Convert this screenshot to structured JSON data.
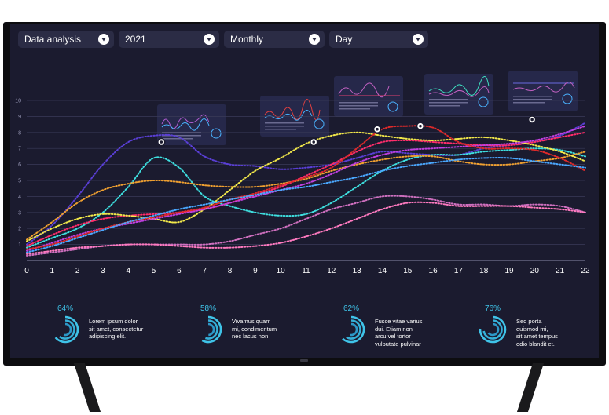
{
  "toolbar": {
    "title_select": "Data analysis",
    "year_select": "2021",
    "period_select": "Monthly",
    "unit_select": "Day"
  },
  "kpis": [
    {
      "percent_label": "64%",
      "percent": 64,
      "text": [
        "Lorem ipsum dolor",
        "sit amet, consectetur",
        "adipiscing elit."
      ]
    },
    {
      "percent_label": "58%",
      "percent": 58,
      "text": [
        "Vivamus quam",
        "mi, condimentum",
        "nec lacus non"
      ]
    },
    {
      "percent_label": "62%",
      "percent": 62,
      "text": [
        "Fusce vitae varius",
        "dui.  Etiam non",
        "arcu vel tortor",
        "vulputate pulvinar"
      ]
    },
    {
      "percent_label": "76%",
      "percent": 76,
      "text": [
        "Sed porta",
        "euismod mi,",
        "sit amet tempus",
        "odio blandit et."
      ]
    }
  ],
  "colors": {
    "screen_bg": "#1b1b2f",
    "accent_cyan": "#3fc3e8",
    "series": [
      "#5a3fd6",
      "#3ee0e0",
      "#f0a030",
      "#ff2d6b",
      "#f2e84a",
      "#c040e0",
      "#e02a2a",
      "#d070c0",
      "#4aa8ff",
      "#ff7ac0"
    ]
  },
  "chart_data": {
    "type": "line",
    "x": [
      0,
      1,
      2,
      3,
      4,
      5,
      6,
      7,
      8,
      9,
      10,
      11,
      12,
      13,
      14,
      15,
      16,
      17,
      18,
      19,
      20,
      21,
      22
    ],
    "ylim": [
      0,
      10
    ],
    "y_ticks": [
      1,
      2,
      3,
      4,
      5,
      6,
      7,
      8,
      9,
      10
    ],
    "grid": true,
    "line_style": "dotted",
    "series": [
      {
        "values": [
          1.0,
          2.2,
          4.0,
          6.0,
          7.4,
          7.8,
          7.7,
          6.5,
          6.0,
          5.9,
          5.7,
          5.8,
          6.0,
          6.4,
          6.8,
          6.7,
          6.6,
          6.6,
          7.0,
          7.2,
          7.4,
          7.8,
          8.6
        ]
      },
      {
        "values": [
          0.8,
          1.4,
          2.0,
          3.0,
          4.6,
          6.4,
          5.8,
          4.0,
          3.4,
          3.0,
          2.8,
          2.9,
          3.6,
          4.6,
          5.6,
          6.3,
          6.6,
          6.6,
          6.8,
          6.9,
          7.0,
          6.9,
          6.5
        ]
      },
      {
        "values": [
          1.3,
          2.4,
          3.6,
          4.4,
          4.8,
          5.0,
          4.9,
          4.7,
          4.6,
          4.6,
          4.8,
          5.1,
          5.6,
          6.0,
          6.3,
          6.5,
          6.5,
          6.2,
          6.0,
          6.0,
          6.2,
          6.4,
          6.8
        ]
      },
      {
        "values": [
          0.9,
          1.6,
          2.2,
          2.6,
          2.8,
          2.9,
          3.0,
          3.2,
          3.6,
          4.1,
          4.6,
          5.3,
          6.0,
          6.8,
          7.4,
          7.5,
          7.4,
          7.3,
          7.2,
          7.2,
          7.4,
          7.7,
          8.0
        ]
      },
      {
        "values": [
          1.2,
          2.0,
          2.6,
          2.9,
          2.8,
          2.6,
          2.4,
          3.2,
          4.4,
          5.6,
          6.4,
          7.3,
          7.8,
          8.0,
          7.8,
          7.6,
          7.5,
          7.6,
          7.7,
          7.5,
          7.2,
          6.8,
          6.2
        ]
      },
      {
        "values": [
          0.6,
          1.1,
          1.6,
          2.0,
          2.3,
          2.6,
          2.9,
          3.2,
          3.6,
          4.0,
          4.4,
          4.8,
          5.4,
          6.1,
          6.6,
          6.9,
          7.0,
          7.1,
          7.2,
          7.3,
          7.5,
          7.9,
          8.4
        ]
      },
      {
        "values": [
          0.7,
          1.0,
          1.5,
          2.0,
          2.4,
          2.7,
          3.0,
          3.3,
          3.8,
          4.2,
          4.7,
          5.2,
          5.8,
          7.0,
          8.2,
          8.4,
          8.3,
          7.4,
          7.0,
          7.0,
          6.9,
          6.4,
          5.6
        ]
      },
      {
        "values": [
          0.3,
          0.5,
          0.7,
          0.9,
          1.0,
          1.0,
          1.0,
          1.0,
          1.2,
          1.6,
          2.0,
          2.6,
          3.2,
          3.6,
          4.0,
          4.0,
          3.8,
          3.5,
          3.5,
          3.4,
          3.5,
          3.4,
          3.0
        ]
      },
      {
        "values": [
          0.5,
          0.9,
          1.4,
          1.9,
          2.4,
          2.8,
          3.2,
          3.5,
          3.8,
          4.1,
          4.4,
          4.6,
          4.9,
          5.2,
          5.6,
          5.9,
          6.1,
          6.3,
          6.4,
          6.4,
          6.2,
          6.0,
          5.8
        ]
      },
      {
        "values": [
          0.4,
          0.6,
          0.8,
          0.9,
          1.0,
          1.0,
          0.9,
          0.8,
          0.8,
          0.9,
          1.1,
          1.5,
          2.0,
          2.6,
          3.2,
          3.6,
          3.6,
          3.4,
          3.4,
          3.4,
          3.3,
          3.2,
          3.0
        ]
      }
    ],
    "highlight_points": [
      {
        "x": 5.3,
        "y": 7.4
      },
      {
        "x": 11.3,
        "y": 7.4
      },
      {
        "x": 13.8,
        "y": 8.2
      },
      {
        "x": 15.5,
        "y": 8.4
      },
      {
        "x": 19.9,
        "y": 8.8
      }
    ]
  }
}
